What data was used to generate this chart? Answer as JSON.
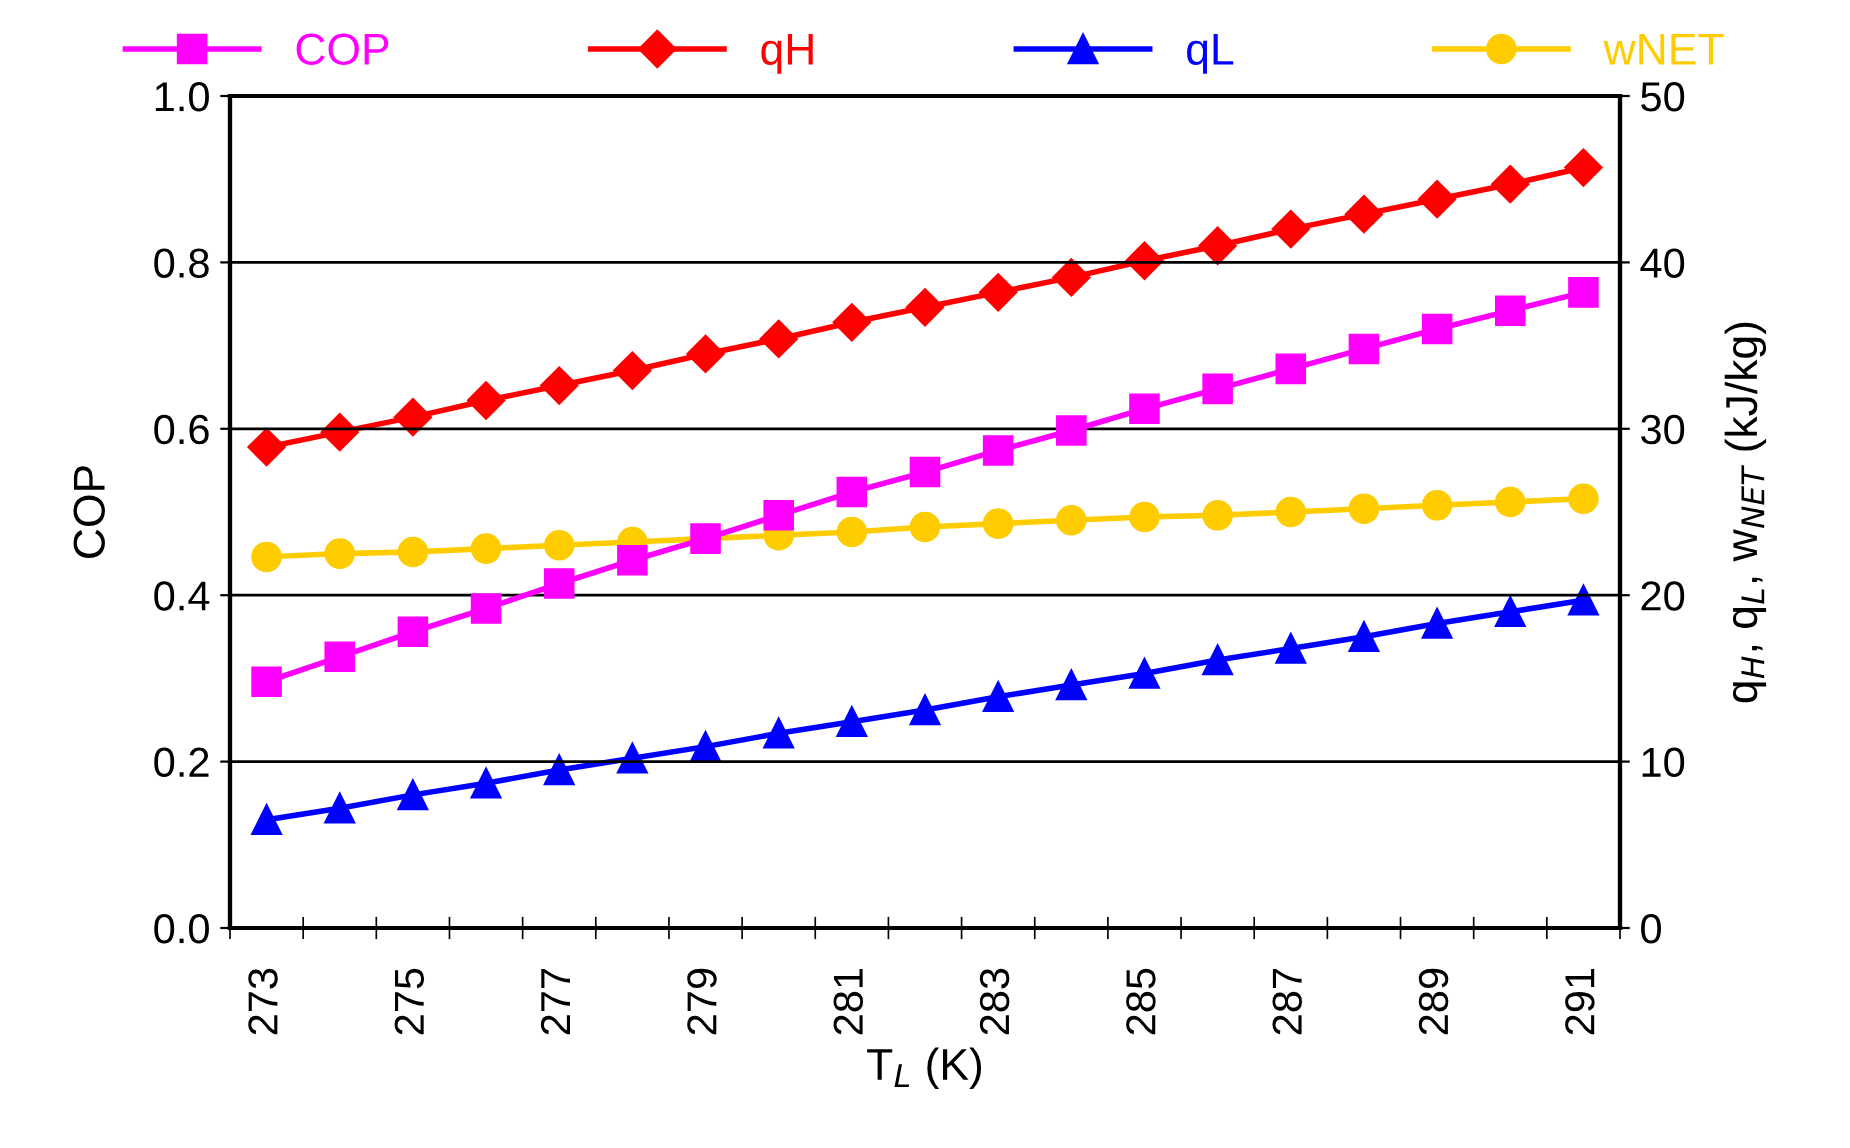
{
  "chart_data": {
    "type": "line",
    "xlabel": "T$_{L}$ (K)",
    "ylabel": "COP",
    "y2label": "q$_{H}$, q$_{L}$, w$_{NET}$ (kJ/kg)",
    "categories": [
      "273",
      null,
      "275",
      null,
      "277",
      null,
      "279",
      null,
      "281",
      null,
      "283",
      null,
      "285",
      null,
      "287",
      null,
      "289",
      null,
      "291"
    ],
    "series": [
      {
        "name": "COP",
        "color": "#ff00ff",
        "marker": "square",
        "values": [
          0.296,
          0.326,
          0.356,
          0.384,
          0.414,
          0.442,
          0.468,
          0.496,
          0.524,
          0.548,
          0.574,
          0.598,
          0.624,
          0.648,
          0.672,
          0.696,
          0.72,
          0.742,
          0.764
        ]
      },
      {
        "name": "qH",
        "color": "#ff0000",
        "marker": "diamond",
        "axis": "y2",
        "values": [
          28.9,
          29.8,
          30.7,
          31.7,
          32.6,
          33.5,
          34.5,
          35.4,
          36.4,
          37.3,
          38.2,
          39.1,
          40.1,
          41.0,
          42.0,
          42.9,
          43.8,
          44.7,
          45.7
        ]
      },
      {
        "name": "qL",
        "color": "#0000ff",
        "marker": "triangle",
        "axis": "y2",
        "values": [
          6.5,
          7.2,
          8.0,
          8.7,
          9.5,
          10.2,
          10.9,
          11.7,
          12.4,
          13.1,
          13.9,
          14.6,
          15.3,
          16.1,
          16.8,
          17.5,
          18.3,
          19.0,
          19.7
        ]
      },
      {
        "name": "wNET",
        "color": "#ffcc00",
        "marker": "circle",
        "axis": "y2",
        "values": [
          22.3,
          22.5,
          22.6,
          22.8,
          23.0,
          23.2,
          23.4,
          23.6,
          23.8,
          24.1,
          24.3,
          24.5,
          24.7,
          24.8,
          25.0,
          25.2,
          25.4,
          25.6,
          25.8
        ]
      }
    ],
    "ylim": [
      0,
      1
    ],
    "yticks": [
      {
        "value": 0,
        "label": "0.0"
      },
      {
        "value": 0.2,
        "label": "0.2"
      },
      {
        "value": 0.4,
        "label": "0.4"
      },
      {
        "value": 0.6,
        "label": "0.6"
      },
      {
        "value": 0.8,
        "label": "0.8"
      },
      {
        "value": 1,
        "label": "1.0"
      }
    ],
    "y2lim": [
      0,
      50
    ],
    "y2ticks": [
      0,
      10,
      20,
      30,
      40,
      50
    ],
    "grid": "y",
    "legend": "top",
    "line_style": "solid"
  }
}
